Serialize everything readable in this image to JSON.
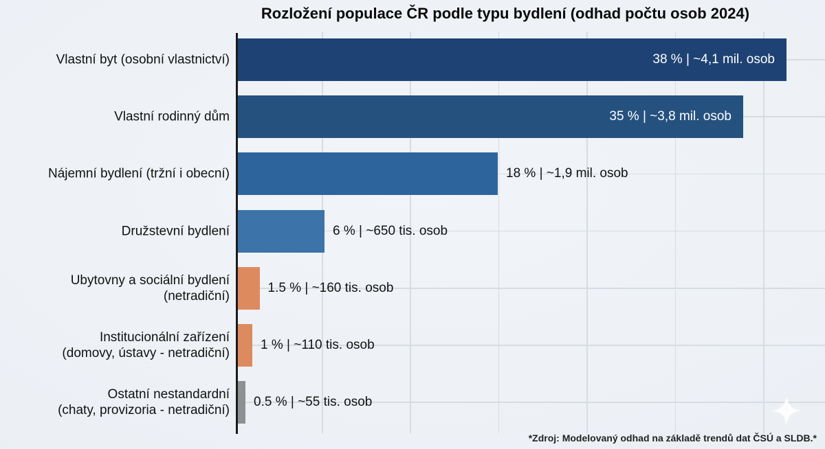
{
  "title": "Rozložení populace ČR podle typu bydlení (odhad počtu osob 2024)",
  "source_note": "*Zdroj: Modelovaný odhad na základě trendů dat ČSÚ a SLDB.*",
  "watermark_icon": "sparkle-icon",
  "colors": {
    "background": "#edf1f6",
    "axis": "#1b1b1b",
    "gridline": "#d7dce1",
    "label_text": "#111111",
    "inside_label_text": "#ffffff",
    "bar_dark_blue": "#1e4273",
    "bar_blue": "#25517f",
    "bar_medium_blue": "#2d649c",
    "bar_light_blue": "#3c73a9",
    "bar_orange": "#dd8a5e",
    "bar_gray": "#8d9192"
  },
  "chart_data": {
    "type": "bar",
    "orientation": "horizontal",
    "title": "Rozložení populace ČR podle typu bydlení (odhad počtu osob 2024)",
    "xlabel": "",
    "ylabel": "",
    "xlim_percent": [
      0,
      41
    ],
    "grid": true,
    "legend": false,
    "categories": [
      "Vlastní byt (osobní vlastnictví)",
      "Vlastní rodinný dům",
      "Nájemní bydlení (tržní i obecní)",
      "Družstevní bydlení",
      "Ubytovny a sociální bydlení (netradiční)",
      "Institucionální zařízení (domovy, ústavy - netradiční)",
      "Ostatní nestandardní (chaty, provizoria - netradiční)"
    ],
    "values_percent": [
      38,
      35,
      18,
      6,
      1.5,
      1,
      0.5
    ],
    "rows": [
      {
        "label_lines": [
          "Vlastní byt (osobní vlastnictví)"
        ],
        "percent": 38,
        "value_label": "38 % | ~4,1 mil. osob",
        "people": "~4,1 mil. osob",
        "color": "#1e4273",
        "label_inside": true
      },
      {
        "label_lines": [
          "Vlastní rodinný dům"
        ],
        "percent": 35,
        "value_label": "35 % | ~3,8 mil. osob",
        "people": "~3,8 mil. osob",
        "color": "#25517f",
        "label_inside": true
      },
      {
        "label_lines": [
          "Nájemní bydlení (tržní i obecní)"
        ],
        "percent": 18,
        "value_label": "18 % | ~1,9 mil. osob",
        "people": "~1,9 mil. osob",
        "color": "#2d649c",
        "label_inside": false
      },
      {
        "label_lines": [
          "Družstevní bydlení"
        ],
        "percent": 6,
        "value_label": "6 % | ~650 tis. osob",
        "people": "~650 tis. osob",
        "color": "#3c73a9",
        "label_inside": false
      },
      {
        "label_lines": [
          "Ubytovny a sociální bydlení",
          "(netradiční)"
        ],
        "percent": 1.5,
        "value_label": "1.5 % | ~160 tis. osob",
        "people": "~160 tis. osob",
        "color": "#dd8a5e",
        "label_inside": false
      },
      {
        "label_lines": [
          "Institucionální zařízení",
          "(domovy, ústavy - netradiční)"
        ],
        "percent": 1,
        "value_label": "1 % | ~110 tis. osob",
        "people": "~110 tis. osob",
        "color": "#dd8a5e",
        "label_inside": false
      },
      {
        "label_lines": [
          "Ostatní nestandardní",
          "(chaty, provizoria - netradiční)"
        ],
        "percent": 0.5,
        "value_label": "0.5 % | ~55 tis. osob",
        "people": "~55 tis. osob",
        "color": "#8d9192",
        "label_inside": false
      }
    ]
  }
}
